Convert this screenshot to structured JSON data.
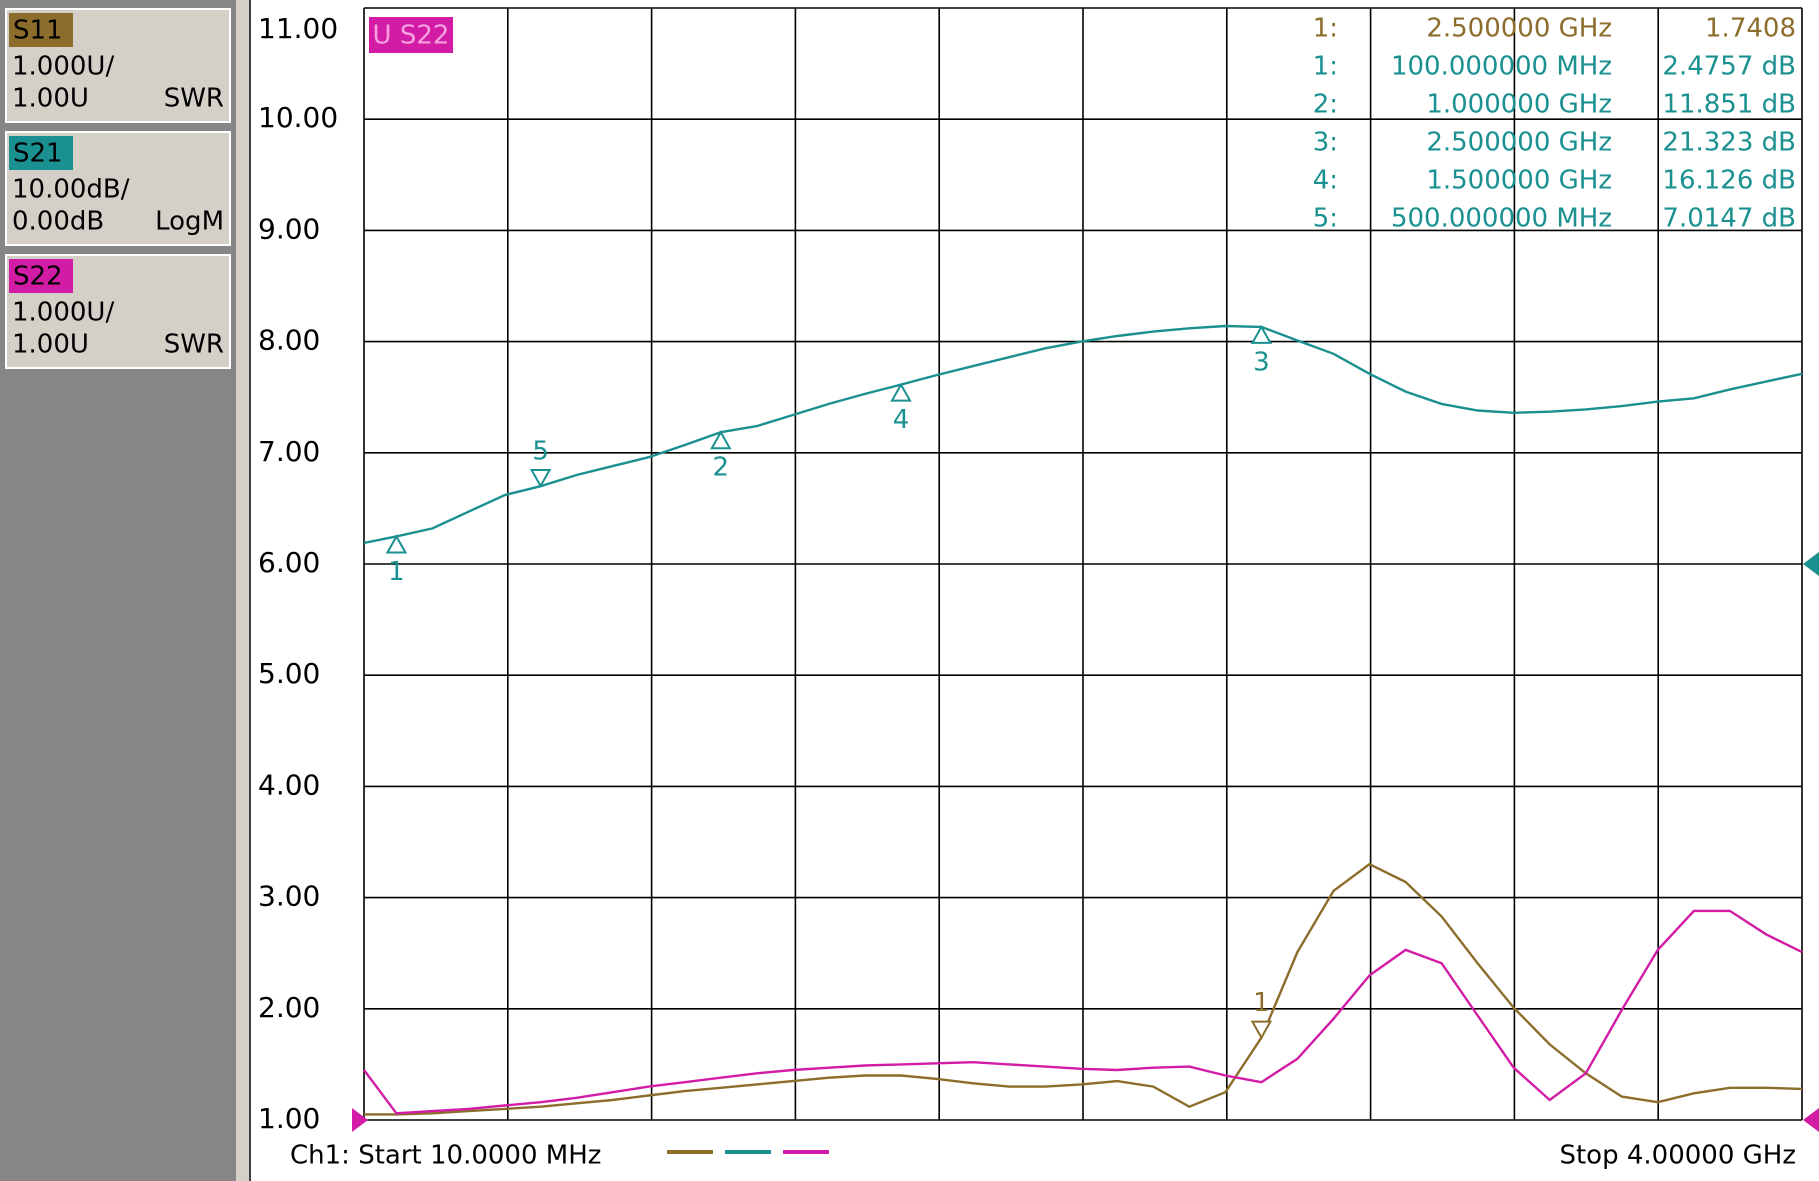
{
  "chart_data": {
    "type": "line",
    "active_trace_label": "U S22",
    "start_label": "Ch1: Start  10.0000 MHz",
    "stop_label": "Stop  4.00000 GHz",
    "x": [
      0.01,
      0.1,
      0.2,
      0.3,
      0.4,
      0.5,
      0.6,
      0.7,
      0.8,
      0.9,
      1.0,
      1.1,
      1.2,
      1.3,
      1.4,
      1.5,
      1.6,
      1.7,
      1.8,
      1.9,
      2.0,
      2.1,
      2.2,
      2.3,
      2.4,
      2.5,
      2.6,
      2.7,
      2.8,
      2.9,
      3.0,
      3.1,
      3.2,
      3.3,
      3.4,
      3.5,
      3.6,
      3.7,
      3.8,
      3.9,
      4.0
    ],
    "xlim": [
      0.01,
      4.0
    ],
    "x_divisions": 10,
    "ylim": [
      1,
      11
    ],
    "yticks": [
      {
        "value": 1,
        "label": "1.00"
      },
      {
        "value": 2,
        "label": "2.00"
      },
      {
        "value": 3,
        "label": "3.00"
      },
      {
        "value": 4,
        "label": "4.00"
      },
      {
        "value": 5,
        "label": "5.00"
      },
      {
        "value": 6,
        "label": "6.00"
      },
      {
        "value": 7,
        "label": "7.00"
      },
      {
        "value": 8,
        "label": "8.00"
      },
      {
        "value": 9,
        "label": "9.00"
      },
      {
        "value": 10,
        "label": "10.00"
      },
      {
        "value": 11,
        "label": "11.00"
      }
    ],
    "y2lim": [
      -50,
      50
    ],
    "grid": true,
    "series": [
      {
        "name": "S11",
        "color": "#8c6d2c",
        "scale": "1.000U/",
        "reference": "1.00U",
        "format": "SWR",
        "values": [
          1.05,
          1.05,
          1.06,
          1.08,
          1.1,
          1.12,
          1.15,
          1.18,
          1.22,
          1.26,
          1.29,
          1.32,
          1.35,
          1.38,
          1.4,
          1.4,
          1.37,
          1.33,
          1.3,
          1.3,
          1.32,
          1.35,
          1.3,
          1.12,
          1.25,
          1.74,
          2.51,
          3.06,
          3.3,
          3.14,
          2.83,
          2.41,
          2.01,
          1.68,
          1.42,
          1.21,
          1.16,
          1.24,
          1.29,
          1.29,
          1.28
        ],
        "markers": [
          {
            "id": "1",
            "table_id": "1:",
            "x": 2.5,
            "x_label": "2.500000 GHz",
            "value": 1.7408,
            "value_label": "1.7408",
            "glyph": "down"
          }
        ]
      },
      {
        "name": "S21",
        "color": "#1b9090",
        "axis": "y2",
        "scale": "10.00dB/",
        "reference": "0.00dB",
        "format": "LogM",
        "values": [
          1.9,
          2.48,
          3.2,
          4.7,
          6.2,
          7.0,
          8.0,
          8.8,
          9.6,
          10.7,
          11.85,
          12.4,
          13.4,
          14.4,
          15.3,
          16.13,
          17.0,
          17.8,
          18.6,
          19.4,
          20.0,
          20.5,
          20.9,
          21.2,
          21.4,
          21.32,
          20.1,
          18.9,
          17.1,
          15.5,
          14.4,
          13.8,
          13.6,
          13.7,
          13.9,
          14.2,
          14.6,
          14.9,
          15.7,
          16.4,
          17.1
        ],
        "markers": [
          {
            "id": "1",
            "table_id": "1:",
            "x": 0.1,
            "x_label": "100.000000 MHz",
            "value": 2.4757,
            "value_label": "2.4757 dB",
            "glyph": "up"
          },
          {
            "id": "2",
            "table_id": "2:",
            "x": 1.0,
            "x_label": "1.000000 GHz",
            "value": 11.851,
            "value_label": "11.851 dB",
            "glyph": "up"
          },
          {
            "id": "3",
            "table_id": "3:",
            "x": 2.5,
            "x_label": "2.500000 GHz",
            "value": 21.323,
            "value_label": "21.323 dB",
            "glyph": "up"
          },
          {
            "id": "4",
            "table_id": "4:",
            "x": 1.5,
            "x_label": "1.500000 GHz",
            "value": 16.126,
            "value_label": "16.126 dB",
            "glyph": "up"
          },
          {
            "id": "5",
            "table_id": "5:",
            "x": 0.5,
            "x_label": "500.000000 MHz",
            "value": 7.0147,
            "value_label": "7.0147 dB",
            "glyph": "down"
          }
        ]
      },
      {
        "name": "S22",
        "color": "#d21ca5",
        "scale": "1.000U/",
        "reference": "1.00U",
        "format": "SWR",
        "values": [
          1.45,
          1.06,
          1.08,
          1.1,
          1.13,
          1.16,
          1.2,
          1.25,
          1.3,
          1.34,
          1.38,
          1.42,
          1.45,
          1.47,
          1.49,
          1.5,
          1.51,
          1.52,
          1.5,
          1.48,
          1.46,
          1.45,
          1.47,
          1.48,
          1.4,
          1.34,
          1.55,
          1.91,
          2.3,
          2.53,
          2.41,
          1.94,
          1.47,
          1.18,
          1.42,
          1.99,
          2.53,
          2.88,
          2.88,
          2.67,
          2.51
        ],
        "markers": []
      }
    ]
  }
}
